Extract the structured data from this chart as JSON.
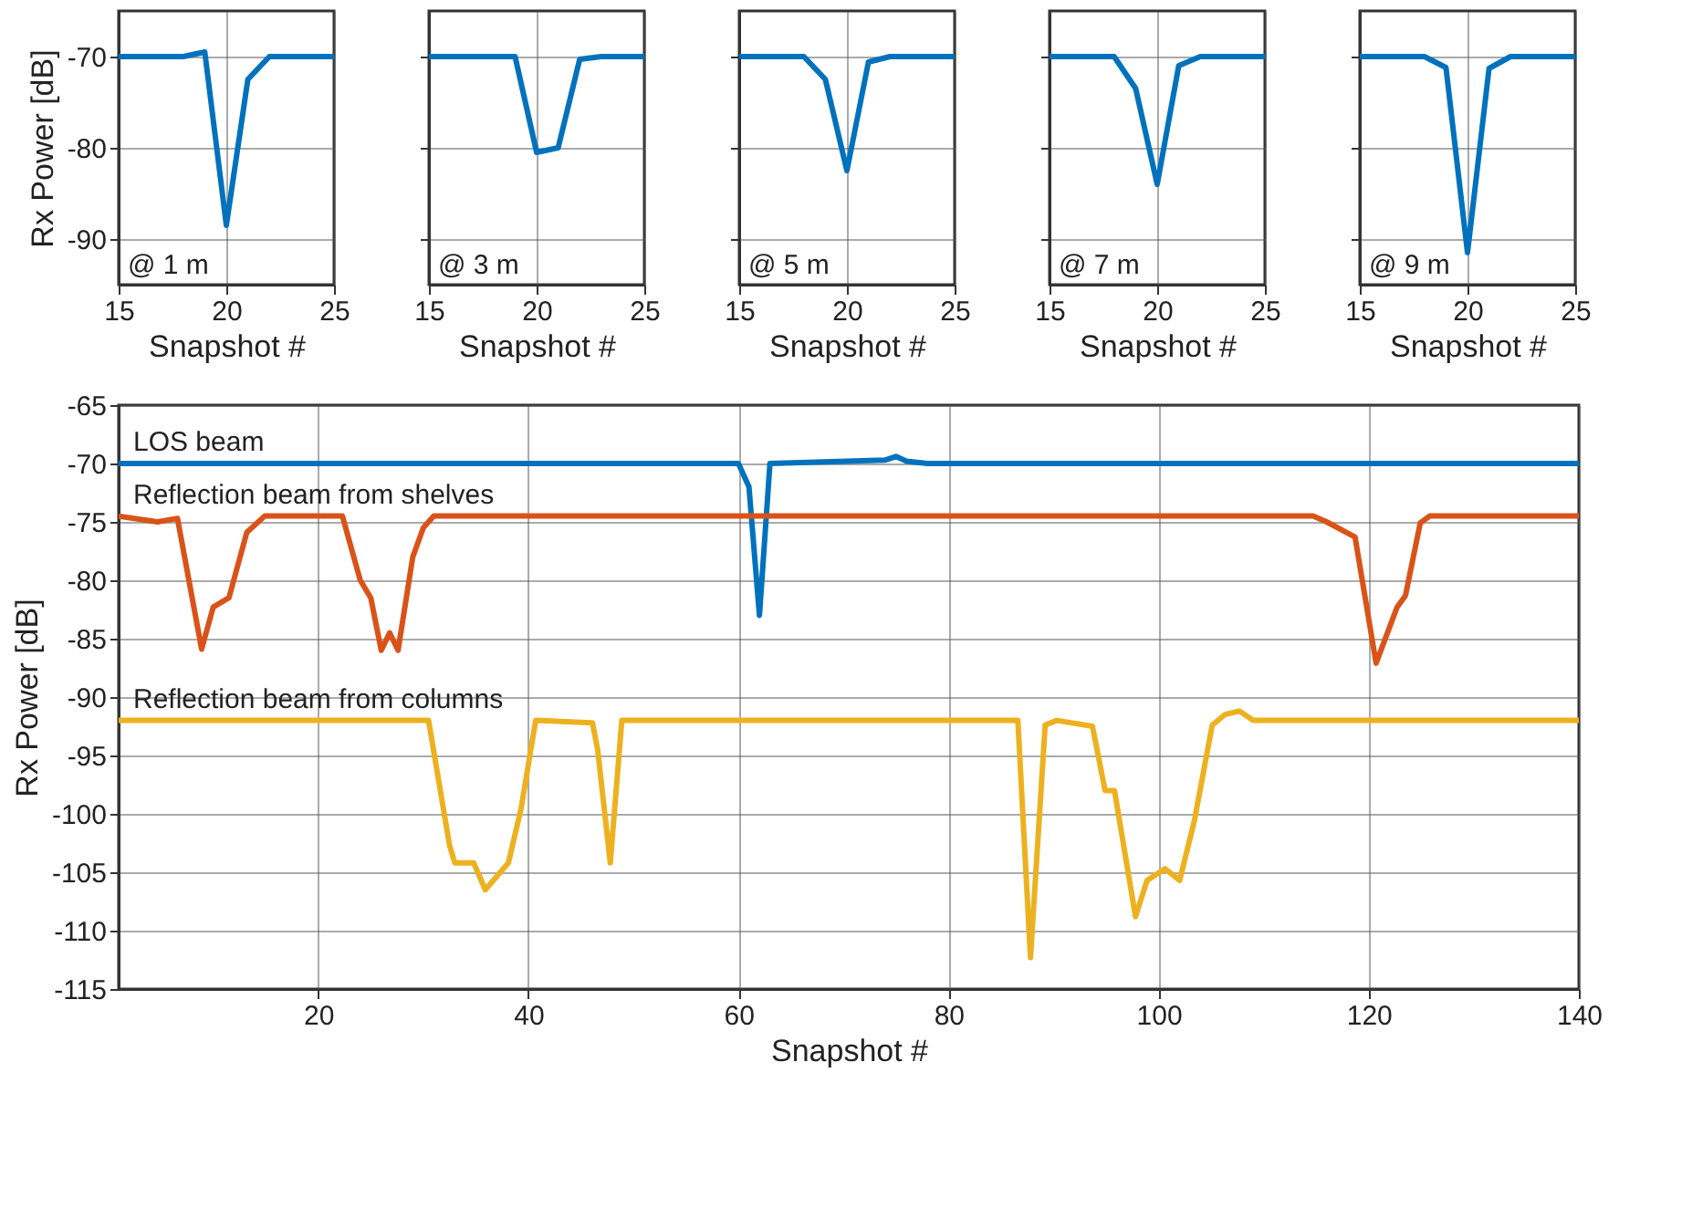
{
  "chart_data": [
    {
      "type": "line",
      "x": [
        15,
        16,
        17,
        18,
        19,
        20,
        21,
        22,
        23,
        24,
        25
      ],
      "xlim": [
        15,
        25
      ],
      "xticks": [
        15,
        20,
        25
      ],
      "ylim": [
        -95,
        -65
      ],
      "yticks": [
        -70,
        -80,
        -90
      ],
      "xlabel": "Snapshot #",
      "ylabel": "Rx Power [dB]",
      "annotations": [
        "@ 1 m"
      ],
      "grid": true,
      "marker": "none",
      "line_style": "solid",
      "series": [
        {
          "color": "#0072bd",
          "values": [
            -70,
            -70,
            -70,
            -70,
            -69.5,
            -88.5,
            -72.5,
            -70,
            -70,
            -70,
            -70
          ]
        }
      ]
    },
    {
      "type": "line",
      "x": [
        15,
        16,
        17,
        18,
        19,
        20,
        21,
        22,
        23,
        24,
        25
      ],
      "xlim": [
        15,
        25
      ],
      "xticks": [
        15,
        20,
        25
      ],
      "ylim": [
        -95,
        -65
      ],
      "yticks": [
        -70,
        -80,
        -90
      ],
      "xlabel": "Snapshot #",
      "annotations": [
        "@ 3 m"
      ],
      "grid": true,
      "marker": "none",
      "line_style": "solid",
      "tick_labels": "x",
      "series": [
        {
          "color": "#0072bd",
          "values": [
            -70,
            -70,
            -70,
            -70,
            -70,
            -80.5,
            -80,
            -70.3,
            -70,
            -70,
            -70
          ]
        }
      ]
    },
    {
      "type": "line",
      "x": [
        15,
        16,
        17,
        18,
        19,
        20,
        21,
        22,
        23,
        24,
        25
      ],
      "xlim": [
        15,
        25
      ],
      "xticks": [
        15,
        20,
        25
      ],
      "ylim": [
        -95,
        -65
      ],
      "yticks": [
        -70,
        -80,
        -90
      ],
      "xlabel": "Snapshot #",
      "annotations": [
        "@ 5 m"
      ],
      "grid": true,
      "marker": "none",
      "line_style": "solid",
      "tick_labels": "x",
      "series": [
        {
          "color": "#0072bd",
          "values": [
            -70,
            -70,
            -70,
            -70,
            -72.5,
            -82.5,
            -70.6,
            -70,
            -70,
            -70,
            -70
          ]
        }
      ]
    },
    {
      "type": "line",
      "x": [
        15,
        16,
        17,
        18,
        19,
        20,
        21,
        22,
        23,
        24,
        25
      ],
      "xlim": [
        15,
        25
      ],
      "xticks": [
        15,
        20,
        25
      ],
      "ylim": [
        -95,
        -65
      ],
      "yticks": [
        -70,
        -80,
        -90
      ],
      "xlabel": "Snapshot #",
      "annotations": [
        "@ 7 m"
      ],
      "grid": true,
      "marker": "none",
      "line_style": "solid",
      "tick_labels": "x",
      "series": [
        {
          "color": "#0072bd",
          "values": [
            -70,
            -70,
            -70,
            -70,
            -73.5,
            -84,
            -71,
            -70,
            -70,
            -70,
            -70
          ]
        }
      ]
    },
    {
      "type": "line",
      "x": [
        15,
        16,
        17,
        18,
        19,
        20,
        21,
        22,
        23,
        24,
        25
      ],
      "xlim": [
        15,
        25
      ],
      "xticks": [
        15,
        20,
        25
      ],
      "ylim": [
        -95,
        -65
      ],
      "yticks": [
        -70,
        -80,
        -90
      ],
      "xlabel": "Snapshot #",
      "annotations": [
        "@ 9 m"
      ],
      "grid": true,
      "marker": "none",
      "line_style": "solid",
      "tick_labels": "x",
      "series": [
        {
          "color": "#0072bd",
          "values": [
            -70,
            -70,
            -70,
            -70,
            -71.2,
            -91.5,
            -71.3,
            -70,
            -70,
            -70,
            -70
          ]
        }
      ]
    },
    {
      "type": "line",
      "xlim": [
        1,
        140
      ],
      "xticks": [
        20,
        40,
        60,
        80,
        100,
        120,
        140
      ],
      "ylim": [
        -115,
        -65
      ],
      "yticks": [
        -65,
        -70,
        -75,
        -80,
        -85,
        -90,
        -95,
        -100,
        -105,
        -110,
        -115
      ],
      "xlabel": "Snapshot #",
      "ylabel": "Rx Power [dB]",
      "grid": true,
      "marker": "none",
      "line_style": "solid",
      "series": [
        {
          "name": "LOS beam",
          "color": "#0072bd",
          "x": [
            1,
            60,
            61,
            62,
            63,
            74,
            75,
            76,
            78,
            140
          ],
          "values": [
            -70,
            -70,
            -72,
            -83,
            -70,
            -69.7,
            -69.4,
            -69.8,
            -70,
            -70
          ]
        },
        {
          "name": "Reflection beam from shelves",
          "color": "#d95319",
          "x": [
            1,
            4.7,
            6.6,
            8.9,
            10,
            11.5,
            13.2,
            14.9,
            22.3,
            24,
            25,
            26,
            26.8,
            27.6,
            29,
            30,
            31,
            114.7,
            116,
            118.7,
            120.7,
            122.7,
            123.5,
            124.9,
            125.8,
            140
          ],
          "values": [
            -74.5,
            -75,
            -74.7,
            -85.9,
            -82.3,
            -81.5,
            -75.9,
            -74.5,
            -74.5,
            -80,
            -81.5,
            -86,
            -84.5,
            -86,
            -78,
            -75.5,
            -74.5,
            -74.5,
            -75,
            -76.3,
            -87.1,
            -82.3,
            -81.3,
            -75.1,
            -74.5,
            -74.5
          ]
        },
        {
          "name": "Reflection beam from columns",
          "color": "#edb120",
          "x": [
            1,
            30.5,
            32.5,
            33,
            34.8,
            35.9,
            38.1,
            39.3,
            40.7,
            46.1,
            46.6,
            47.8,
            48.9,
            86.6,
            87.8,
            89.2,
            90.3,
            93.7,
            94.9,
            95.8,
            97.8,
            98.9,
            100.6,
            102,
            103.4,
            105.1,
            106.3,
            107.7,
            109,
            140
          ],
          "values": [
            -92,
            -92,
            -102.7,
            -104.2,
            -104.2,
            -106.5,
            -104.2,
            -99.6,
            -92,
            -92.2,
            -94.5,
            -104.2,
            -92,
            -92,
            -112.3,
            -92.4,
            -92,
            -92.5,
            -98,
            -98,
            -108.8,
            -105.7,
            -104.7,
            -105.7,
            -100.6,
            -92.4,
            -91.5,
            -91.2,
            -92,
            -92
          ]
        }
      ]
    }
  ]
}
